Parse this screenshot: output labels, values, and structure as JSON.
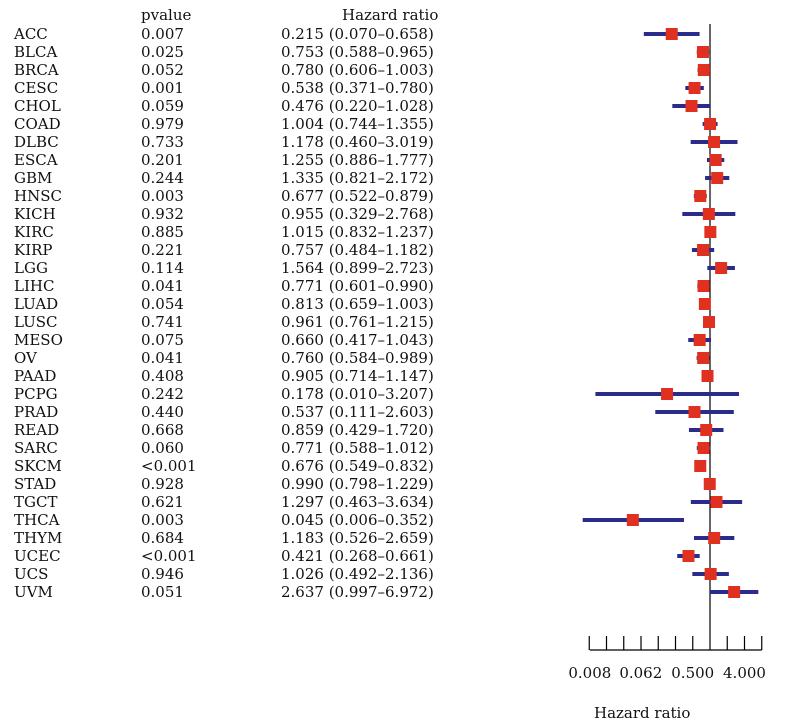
{
  "headers": {
    "pvalue": "pvalue",
    "hazard_ratio": "Hazard ratio"
  },
  "colors": {
    "ci_line": "#2b2b8c",
    "point": "#e03020",
    "reference_line": "#000000"
  },
  "chart_data": {
    "type": "forest",
    "title": "",
    "xlabel": "Hazard ratio",
    "xscale": "log2",
    "xticks": [
      "0.008",
      "0.062",
      "0.500",
      "4.000"
    ],
    "reference_line": 1,
    "rows": [
      {
        "type": "ACC",
        "pvalue": "0.007",
        "hr_text": "0.215 (0.070–0.658)",
        "hr": 0.215,
        "lo": 0.07,
        "hi": 0.658
      },
      {
        "type": "BLCA",
        "pvalue": "0.025",
        "hr_text": "0.753 (0.588–0.965)",
        "hr": 0.753,
        "lo": 0.588,
        "hi": 0.965
      },
      {
        "type": "BRCA",
        "pvalue": "0.052",
        "hr_text": "0.780 (0.606–1.003)",
        "hr": 0.78,
        "lo": 0.606,
        "hi": 1.003
      },
      {
        "type": "CESC",
        "pvalue": "0.001",
        "hr_text": "0.538 (0.371–0.780)",
        "hr": 0.538,
        "lo": 0.371,
        "hi": 0.78
      },
      {
        "type": "CHOL",
        "pvalue": "0.059",
        "hr_text": "0.476 (0.220–1.028)",
        "hr": 0.476,
        "lo": 0.22,
        "hi": 1.028
      },
      {
        "type": "COAD",
        "pvalue": "0.979",
        "hr_text": "1.004 (0.744–1.355)",
        "hr": 1.004,
        "lo": 0.744,
        "hi": 1.355
      },
      {
        "type": "DLBC",
        "pvalue": "0.733",
        "hr_text": "1.178 (0.460–3.019)",
        "hr": 1.178,
        "lo": 0.46,
        "hi": 3.019
      },
      {
        "type": "ESCA",
        "pvalue": "0.201",
        "hr_text": "1.255 (0.886–1.777)",
        "hr": 1.255,
        "lo": 0.886,
        "hi": 1.777
      },
      {
        "type": "GBM",
        "pvalue": "0.244",
        "hr_text": "1.335 (0.821–2.172)",
        "hr": 1.335,
        "lo": 0.821,
        "hi": 2.172
      },
      {
        "type": "HNSC",
        "pvalue": "0.003",
        "hr_text": "0.677 (0.522–0.879)",
        "hr": 0.677,
        "lo": 0.522,
        "hi": 0.879
      },
      {
        "type": "KICH",
        "pvalue": "0.932",
        "hr_text": "0.955 (0.329–2.768)",
        "hr": 0.955,
        "lo": 0.329,
        "hi": 2.768
      },
      {
        "type": "KIRC",
        "pvalue": "0.885",
        "hr_text": "1.015 (0.832–1.237)",
        "hr": 1.015,
        "lo": 0.832,
        "hi": 1.237
      },
      {
        "type": "KIRP",
        "pvalue": "0.221",
        "hr_text": "0.757 (0.484–1.182)",
        "hr": 0.757,
        "lo": 0.484,
        "hi": 1.182
      },
      {
        "type": "LGG",
        "pvalue": "0.114",
        "hr_text": "1.564 (0.899–2.723)",
        "hr": 1.564,
        "lo": 0.899,
        "hi": 2.723
      },
      {
        "type": "LIHC",
        "pvalue": "0.041",
        "hr_text": "0.771 (0.601–0.990)",
        "hr": 0.771,
        "lo": 0.601,
        "hi": 0.99
      },
      {
        "type": "LUAD",
        "pvalue": "0.054",
        "hr_text": "0.813 (0.659–1.003)",
        "hr": 0.813,
        "lo": 0.659,
        "hi": 1.003
      },
      {
        "type": "LUSC",
        "pvalue": "0.741",
        "hr_text": "0.961 (0.761–1.215)",
        "hr": 0.961,
        "lo": 0.761,
        "hi": 1.215
      },
      {
        "type": "MESO",
        "pvalue": "0.075",
        "hr_text": "0.660 (0.417–1.043)",
        "hr": 0.66,
        "lo": 0.417,
        "hi": 1.043
      },
      {
        "type": "OV",
        "pvalue": "0.041",
        "hr_text": "0.760 (0.584–0.989)",
        "hr": 0.76,
        "lo": 0.584,
        "hi": 0.989
      },
      {
        "type": "PAAD",
        "pvalue": "0.408",
        "hr_text": "0.905 (0.714–1.147)",
        "hr": 0.905,
        "lo": 0.714,
        "hi": 1.147
      },
      {
        "type": "PCPG",
        "pvalue": "0.242",
        "hr_text": "0.178 (0.010–3.207)",
        "hr": 0.178,
        "lo": 0.01,
        "hi": 3.207
      },
      {
        "type": "PRAD",
        "pvalue": "0.440",
        "hr_text": "0.537 (0.111–2.603)",
        "hr": 0.537,
        "lo": 0.111,
        "hi": 2.603
      },
      {
        "type": "READ",
        "pvalue": "0.668",
        "hr_text": "0.859 (0.429–1.720)",
        "hr": 0.859,
        "lo": 0.429,
        "hi": 1.72
      },
      {
        "type": "SARC",
        "pvalue": "0.060",
        "hr_text": "0.771 (0.588–1.012)",
        "hr": 0.771,
        "lo": 0.588,
        "hi": 1.012
      },
      {
        "type": "SKCM",
        "pvalue": "<0.001",
        "hr_text": "0.676 (0.549–0.832)",
        "hr": 0.676,
        "lo": 0.549,
        "hi": 0.832
      },
      {
        "type": "STAD",
        "pvalue": "0.928",
        "hr_text": "0.990 (0.798–1.229)",
        "hr": 0.99,
        "lo": 0.798,
        "hi": 1.229
      },
      {
        "type": "TGCT",
        "pvalue": "0.621",
        "hr_text": "1.297 (0.463–3.634)",
        "hr": 1.297,
        "lo": 0.463,
        "hi": 3.634
      },
      {
        "type": "THCA",
        "pvalue": "0.003",
        "hr_text": "0.045 (0.006–0.352)",
        "hr": 0.045,
        "lo": 0.006,
        "hi": 0.352
      },
      {
        "type": "THYM",
        "pvalue": "0.684",
        "hr_text": "1.183 (0.526–2.659)",
        "hr": 1.183,
        "lo": 0.526,
        "hi": 2.659
      },
      {
        "type": "UCEC",
        "pvalue": "<0.001",
        "hr_text": "0.421 (0.268–0.661)",
        "hr": 0.421,
        "lo": 0.268,
        "hi": 0.661
      },
      {
        "type": "UCS",
        "pvalue": "0.946",
        "hr_text": "1.026 (0.492–2.136)",
        "hr": 1.026,
        "lo": 0.492,
        "hi": 2.136
      },
      {
        "type": "UVM",
        "pvalue": "0.051",
        "hr_text": "2.637 (0.997–6.972)",
        "hr": 2.637,
        "lo": 0.997,
        "hi": 6.972
      }
    ]
  }
}
